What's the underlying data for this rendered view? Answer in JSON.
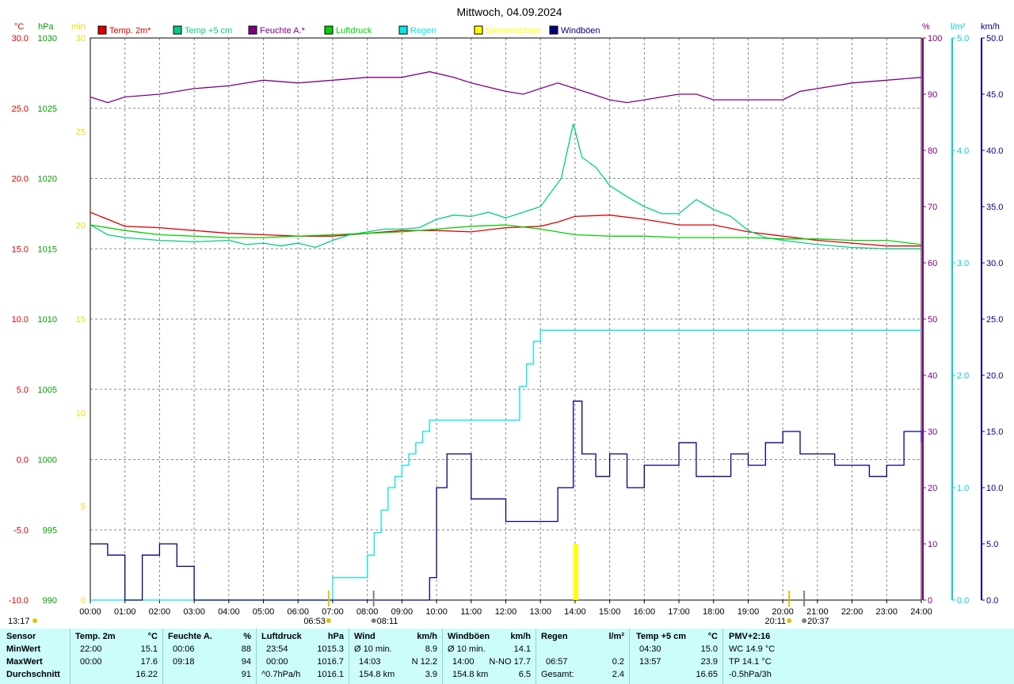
{
  "chart_data": {
    "type": "line",
    "title": "Mittwoch, 04.09.2024",
    "axis_units": {
      "temp": "°C",
      "pressure": "hPa",
      "sun": "min",
      "humidity": "%",
      "rain": "l/m²",
      "wind": "km/h"
    },
    "axes": {
      "temp": {
        "ticks": [
          "30.0",
          "25.0",
          "20.0",
          "15.0",
          "10.0",
          "5.0",
          "0.0",
          "-5.0",
          "-10.0"
        ],
        "range": [
          -10,
          30
        ]
      },
      "pressure": {
        "ticks": [
          "1030",
          "1025",
          "1020",
          "1015",
          "1010",
          "1005",
          "1000",
          "995",
          "990"
        ],
        "range": [
          990,
          1030
        ]
      },
      "sun": {
        "ticks": [
          "30",
          "25",
          "20",
          "15",
          "10",
          "5",
          "0"
        ],
        "range": [
          0,
          30
        ]
      },
      "humidity": {
        "ticks": [
          "100",
          "90",
          "80",
          "70",
          "60",
          "50",
          "40",
          "30",
          "20",
          "10",
          "0"
        ],
        "range": [
          0,
          100
        ]
      },
      "rain": {
        "ticks": [
          "5.0",
          "4.0",
          "3.0",
          "2.0",
          "1.0",
          "0.0"
        ],
        "range": [
          0,
          5
        ]
      },
      "wind": {
        "ticks": [
          "50.0",
          "45.0",
          "40.0",
          "35.0",
          "30.0",
          "25.0",
          "20.0",
          "15.0",
          "10.0",
          "5.0",
          "0.0"
        ],
        "range": [
          0,
          50
        ]
      }
    },
    "x_ticks": [
      "00:00",
      "01:00",
      "02:00",
      "03:00",
      "04:00",
      "05:00",
      "06:00",
      "07:00",
      "08:00",
      "09:00",
      "10:00",
      "11:00",
      "12:00",
      "13:00",
      "14:00",
      "15:00",
      "16:00",
      "17:00",
      "18:00",
      "19:00",
      "20:00",
      "21:00",
      "22:00",
      "23:00",
      "24:00"
    ],
    "x_range_hours": [
      0,
      24
    ],
    "grid": true,
    "legend_position": "top",
    "legend": [
      {
        "label": "Temp. 2m*",
        "color": "#e00000"
      },
      {
        "label": "Temp +5 cm",
        "color": "#00cc88"
      },
      {
        "label": "Feuchte A.*",
        "color": "#800080"
      },
      {
        "label": "Luftdruck",
        "color": "#00d000"
      },
      {
        "label": "Regen",
        "color": "#00e8e8"
      },
      {
        "label": "Sonnenschein",
        "color": "#ffff00"
      },
      {
        "label": "Windböen",
        "color": "#000080"
      }
    ],
    "series": [
      {
        "name": "Temp. 2m*",
        "axis": "temp",
        "color": "#e00000",
        "x": [
          0,
          1,
          2,
          3,
          4,
          5,
          6,
          7,
          8,
          9,
          10,
          11,
          12,
          13,
          13.5,
          14,
          15,
          16,
          17,
          18,
          19,
          20,
          21,
          22,
          23,
          24
        ],
        "y": [
          17.6,
          16.6,
          16.5,
          16.3,
          16.1,
          16.0,
          15.9,
          15.9,
          16.1,
          16.3,
          16.3,
          16.2,
          16.5,
          16.6,
          16.9,
          17.3,
          17.4,
          17.1,
          16.7,
          16.7,
          16.2,
          15.9,
          15.6,
          15.4,
          15.2,
          15.2
        ]
      },
      {
        "name": "Temp +5 cm",
        "axis": "temp",
        "color": "#00cc88",
        "x": [
          0,
          0.5,
          1,
          2,
          3,
          4,
          4.5,
          5,
          5.5,
          6,
          6.5,
          7,
          7.5,
          8,
          8.5,
          9,
          9.5,
          10,
          10.5,
          11,
          11.5,
          12,
          12.5,
          13,
          13.3,
          13.6,
          13.95,
          14.2,
          14.6,
          15,
          15.5,
          16,
          16.5,
          17,
          17.5,
          18,
          18.5,
          19,
          19.5,
          20,
          21,
          22,
          23,
          24
        ],
        "y": [
          16.7,
          16.0,
          15.8,
          15.6,
          15.5,
          15.6,
          15.3,
          15.4,
          15.2,
          15.4,
          15.1,
          15.6,
          16.0,
          16.2,
          16.4,
          16.4,
          16.5,
          17.1,
          17.4,
          17.3,
          17.6,
          17.2,
          17.6,
          18.0,
          19.0,
          20.0,
          23.9,
          21.5,
          20.8,
          19.5,
          18.7,
          18.0,
          17.5,
          17.5,
          18.5,
          17.8,
          17.3,
          16.3,
          15.8,
          15.6,
          15.3,
          15.1,
          15.0,
          15.0
        ]
      },
      {
        "name": "Feuchte A.*",
        "axis": "humidity",
        "color": "#800080",
        "x": [
          0,
          0.5,
          1,
          2,
          3,
          4,
          5,
          6,
          7,
          8,
          9,
          9.8,
          10.5,
          11,
          12,
          12.5,
          13,
          13.5,
          14,
          14.5,
          15,
          15.5,
          16,
          16.5,
          17,
          17.5,
          18,
          19,
          20,
          20.5,
          21,
          22,
          23,
          24
        ],
        "y": [
          89.5,
          88.5,
          89.5,
          90.0,
          91.0,
          91.5,
          92.5,
          92.0,
          92.5,
          93.0,
          93.0,
          94.0,
          93.0,
          92.0,
          90.5,
          90.0,
          91.0,
          92.0,
          91.0,
          90.0,
          89.0,
          88.5,
          89.0,
          89.5,
          90.0,
          90.0,
          89.0,
          89.0,
          89.0,
          90.5,
          91.0,
          92.0,
          92.5,
          93.0
        ]
      },
      {
        "name": "Luftdruck",
        "axis": "pressure",
        "color": "#00d000",
        "x": [
          0,
          1,
          2,
          3,
          4,
          5,
          6,
          7,
          8,
          9,
          10,
          11,
          12,
          13,
          14,
          15,
          16,
          17,
          18,
          19,
          20,
          21,
          22,
          23,
          24
        ],
        "y": [
          1016.7,
          1016.3,
          1016.0,
          1015.9,
          1015.8,
          1015.8,
          1015.9,
          1016.0,
          1016.1,
          1016.2,
          1016.4,
          1016.6,
          1016.7,
          1016.4,
          1016.0,
          1015.9,
          1015.9,
          1015.8,
          1015.8,
          1015.8,
          1015.7,
          1015.7,
          1015.6,
          1015.6,
          1015.3
        ]
      },
      {
        "name": "Regen",
        "axis": "rain",
        "color": "#00e8e8",
        "x": [
          0,
          6.95,
          7,
          7.95,
          8,
          8.2,
          8.4,
          8.6,
          8.8,
          9,
          9.2,
          9.4,
          9.6,
          9.8,
          11,
          12,
          12.4,
          12.6,
          12.8,
          13,
          24
        ],
        "y": [
          0,
          0,
          0.2,
          0.2,
          0.4,
          0.6,
          0.8,
          1.0,
          1.1,
          1.2,
          1.3,
          1.4,
          1.5,
          1.6,
          1.6,
          1.6,
          1.9,
          2.1,
          2.3,
          2.4,
          2.4
        ]
      },
      {
        "name": "Windböen",
        "axis": "wind",
        "color": "#000080",
        "x": [
          0,
          0.5,
          1,
          1.5,
          2,
          2.5,
          3,
          4,
          5,
          6,
          7,
          8,
          9,
          9.7,
          9.8,
          10,
          10.3,
          10.6,
          11,
          11.5,
          12,
          12.5,
          13,
          13.5,
          13.95,
          14.2,
          14.6,
          15,
          15.5,
          16,
          16.5,
          17,
          17.5,
          18,
          18.5,
          19,
          19.5,
          20,
          20.5,
          21,
          21.5,
          22,
          22.5,
          23,
          23.5,
          24
        ],
        "y": [
          5,
          4,
          0,
          4,
          5,
          3,
          0,
          0,
          0,
          0,
          0,
          0,
          0,
          0,
          2,
          10,
          13,
          13,
          9,
          9,
          7,
          7,
          7,
          10,
          17.7,
          13,
          11,
          13,
          10,
          12,
          12,
          14,
          11,
          11,
          13,
          12,
          14,
          15,
          13,
          13,
          12,
          12,
          11,
          12,
          15,
          14
        ]
      }
    ],
    "sunshine": {
      "axis": "sun",
      "color": "#ffff00",
      "x": [
        13.95,
        14.0
      ],
      "y": [
        3,
        3
      ]
    },
    "markers": {
      "sunrise": "06:53",
      "sunset": "20:11",
      "moonrise": "08:11",
      "moonset": "20:37",
      "current_time": "13:17"
    }
  },
  "stats": {
    "sensor": {
      "header": "Sensor",
      "rows": [
        "MinWert",
        "MaxWert",
        "Durchschnitt"
      ]
    },
    "temp2m": {
      "header": "Temp. 2m",
      "unit": "°C",
      "min_time": "22:00",
      "min_val": "15.1",
      "max_time": "00:00",
      "max_val": "17.6",
      "avg": "16.22"
    },
    "humidity": {
      "header": "Feuchte A.",
      "unit": "%",
      "min_time": "00:06",
      "min_val": "88",
      "max_time": "09:18",
      "max_val": "94",
      "avg": "91"
    },
    "pressure": {
      "header": "Luftdruck",
      "unit": "hPa",
      "min_time": "23:54",
      "min_val": "1015.3",
      "max_time": "00:00",
      "max_val": "1016.7",
      "trend": "^0.7hPa/h",
      "avg": "1016.1"
    },
    "wind": {
      "header": "Wind",
      "unit": "km/h",
      "row1_label": "Ø 10 min.",
      "row1_val": "8.9",
      "row2_time": "14:03",
      "row2_dir": "N 12.2",
      "row3_dist": "154.8 km",
      "row3_val": "3.9"
    },
    "gusts": {
      "header": "Windböen",
      "unit": "km/h",
      "row1_label": "Ø 10 min.",
      "row1_val": "14.1",
      "row2_time": "14:00",
      "row2_dir": "N-NO 17.7",
      "row3_dist": "154.8 km",
      "row3_val": "6.5"
    },
    "rain": {
      "header": "Regen",
      "unit": "l/m²",
      "row2_time": "06:57",
      "row2_val": "0.2",
      "row3_label": "Gesamt:",
      "row3_val": "2.4"
    },
    "temp5cm": {
      "header": "Temp +5 cm",
      "unit": "°C",
      "min_time": "04:30",
      "min_val": "15.0",
      "max_time": "13:57",
      "max_val": "23.9",
      "avg": "16.65"
    },
    "pmv": {
      "header": "PMV+2:16",
      "row1": "WC 14.9 °C",
      "row2": "TP 14.1 °C",
      "row3": "-0.5hPa/3h"
    }
  }
}
